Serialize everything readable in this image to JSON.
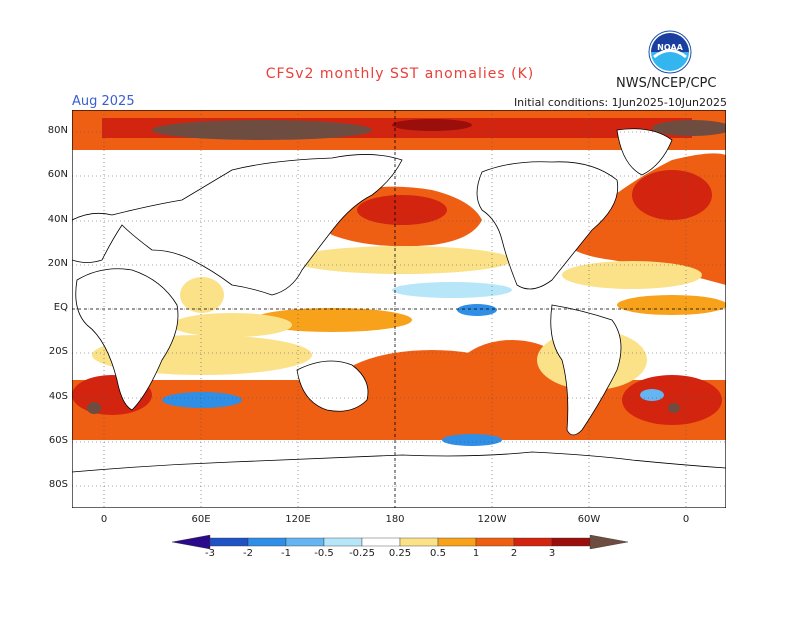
{
  "header": {
    "title": "CFSv2 monthly SST anomalies (K)",
    "month": "Aug 2025",
    "agency": "NWS/NCEP/CPC",
    "init_conditions": "Initial conditions: 1Jun2025-10Jun2025",
    "logo_text": "NOAA"
  },
  "axes": {
    "lat_labels": [
      "80N",
      "60N",
      "40N",
      "20N",
      "EQ",
      "20S",
      "40S",
      "60S",
      "80S"
    ],
    "lon_labels": [
      "0",
      "60E",
      "120E",
      "180",
      "120W",
      "60W",
      "0"
    ]
  },
  "colorbar": {
    "labels": [
      "-3",
      "-2",
      "-1",
      "-0.5",
      "-0.25",
      "0.25",
      "0.5",
      "1",
      "2",
      "3"
    ],
    "colors": [
      "#2a0a8a",
      "#1f52c4",
      "#2f8ee6",
      "#64b5f2",
      "#b7e6f8",
      "#ffffff",
      "#fbe188",
      "#f7a21a",
      "#ef5f13",
      "#d32410",
      "#9a0e0b",
      "#6e4d40"
    ]
  },
  "colors": {
    "title": "#e8403a",
    "month": "#3a5fd0",
    "grid_line": "#555555"
  }
}
